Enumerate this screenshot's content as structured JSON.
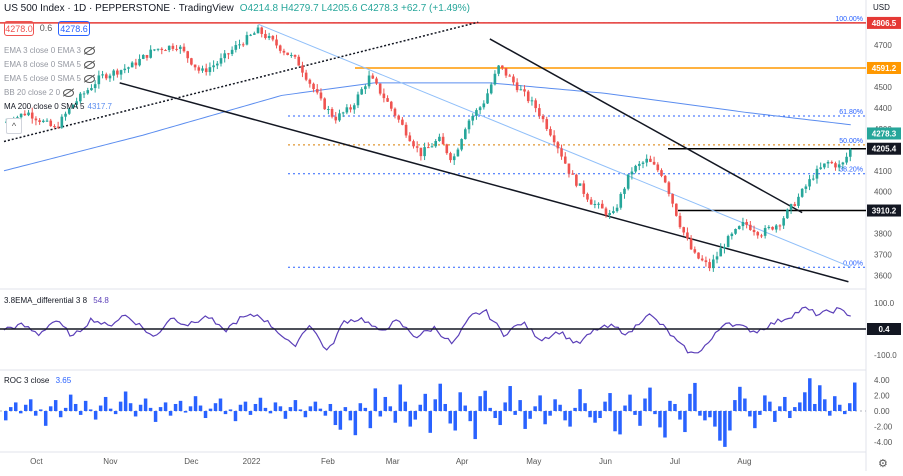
{
  "header": {
    "title": "US 500 Index · 1D · PEPPERSTONE · TradingView",
    "ohlc": "O4214.8 H4279.7 L4205.6 C4278.3 +62.7 (+1.49%)",
    "bid": "4278.0",
    "spread": "0.6",
    "ask": "4278.6",
    "currency": "USD"
  },
  "indicators": [
    {
      "label": "EMA 3 close 0 EMA 3"
    },
    {
      "label": "EMA 8 close 0 SMA 5"
    },
    {
      "label": "EMA 5 close 0 SMA 5"
    },
    {
      "label": "BB 20 close 2 0"
    },
    {
      "label": "MA 200 close 0 SMA 5",
      "value": "4317.7"
    }
  ],
  "colors": {
    "up": "#26a69a",
    "down": "#ef5350",
    "ma200": "#5b8def",
    "red_level": "#e53935",
    "orange_level": "#ff9800",
    "fib": "#2962ff",
    "osc": "#5b3fb8",
    "roc": "#2962ff"
  },
  "chart_data": [
    {
      "type": "candlestick",
      "title": "US 500 Index · 1D · PEPPERSTONE",
      "ylim": [
        3540,
        4830
      ],
      "x_labels": [
        "Oct",
        "Nov",
        "Dec",
        "2022",
        "Feb",
        "Mar",
        "Apr",
        "May",
        "Jun",
        "Jul",
        "Aug"
      ],
      "y_ticks": [
        3600,
        3700,
        3800,
        3900,
        4000,
        4100,
        4200,
        4300,
        4400,
        4500,
        4600,
        4700
      ],
      "close_path_anchors": [
        [
          0,
          4330
        ],
        [
          10,
          4380
        ],
        [
          22,
          4300
        ],
        [
          30,
          4420
        ],
        [
          42,
          4550
        ],
        [
          55,
          4600
        ],
        [
          65,
          4680
        ],
        [
          75,
          4700
        ],
        [
          85,
          4570
        ],
        [
          93,
          4620
        ],
        [
          101,
          4700
        ],
        [
          110,
          4770
        ],
        [
          118,
          4700
        ],
        [
          127,
          4620
        ],
        [
          137,
          4430
        ],
        [
          143,
          4350
        ],
        [
          150,
          4400
        ],
        [
          158,
          4550
        ],
        [
          165,
          4440
        ],
        [
          173,
          4300
        ],
        [
          180,
          4180
        ],
        [
          188,
          4250
        ],
        [
          194,
          4150
        ],
        [
          200,
          4330
        ],
        [
          207,
          4420
        ],
        [
          214,
          4600
        ],
        [
          222,
          4500
        ],
        [
          230,
          4400
        ],
        [
          238,
          4250
        ],
        [
          245,
          4080
        ],
        [
          254,
          3950
        ],
        [
          263,
          3880
        ],
        [
          271,
          4100
        ],
        [
          278,
          4150
        ],
        [
          285,
          4080
        ],
        [
          292,
          3850
        ],
        [
          298,
          3700
        ],
        [
          305,
          3640
        ],
        [
          312,
          3760
        ],
        [
          320,
          3850
        ],
        [
          327,
          3800
        ],
        [
          335,
          3850
        ],
        [
          342,
          3950
        ],
        [
          350,
          4080
        ],
        [
          356,
          4140
        ],
        [
          362,
          4120
        ],
        [
          366,
          4205
        ],
        [
          368,
          4278
        ]
      ],
      "last_close": 4278.3,
      "levels": [
        {
          "label": "4806.5",
          "value": 4806.5,
          "color": "#e53935"
        },
        {
          "label": "4591.2",
          "value": 4591.2,
          "color": "#ff9800"
        },
        {
          "label": "4205.4",
          "value": 4205.4,
          "color": "#000000"
        },
        {
          "label": "3910.2",
          "value": 3910.2,
          "color": "#000000"
        }
      ],
      "fibonacci": [
        {
          "label": "100.00%",
          "value": 4806.5
        },
        {
          "label": "61.80%",
          "value": 4362
        },
        {
          "label": "50.00%",
          "value": 4224
        },
        {
          "label": "38.20%",
          "value": 4086
        },
        {
          "label": "0.00%",
          "value": 3639
        }
      ],
      "trendlines": [
        {
          "name": "support",
          "points": [
            [
              0,
              4240
            ],
            [
              205,
              4810
            ]
          ]
        },
        {
          "name": "upper channel",
          "points": [
            [
              50,
              4520
            ],
            [
              365,
              3570
            ]
          ]
        },
        {
          "name": "descending resistance",
          "points": [
            [
              210,
              4730
            ],
            [
              345,
              3900
            ]
          ]
        }
      ],
      "ma200": [
        [
          0,
          4100
        ],
        [
          60,
          4270
        ],
        [
          120,
          4460
        ],
        [
          160,
          4520
        ],
        [
          210,
          4520
        ],
        [
          260,
          4470
        ],
        [
          320,
          4380
        ],
        [
          366,
          4320
        ]
      ]
    },
    {
      "type": "line",
      "title": "3.8EMA_differential 3 8",
      "value": "54.8",
      "level_label": "0.4",
      "y_ticks": [
        "100.0",
        "-100.0"
      ],
      "ylim": [
        -150,
        150
      ],
      "anchors": [
        [
          0,
          0
        ],
        [
          8,
          15
        ],
        [
          15,
          -20
        ],
        [
          22,
          35
        ],
        [
          30,
          -30
        ],
        [
          38,
          40
        ],
        [
          45,
          10
        ],
        [
          52,
          55
        ],
        [
          58,
          20
        ],
        [
          65,
          -35
        ],
        [
          72,
          45
        ],
        [
          80,
          15
        ],
        [
          88,
          50
        ],
        [
          95,
          -10
        ],
        [
          102,
          40
        ],
        [
          110,
          55
        ],
        [
          118,
          -5
        ],
        [
          125,
          -70
        ],
        [
          132,
          20
        ],
        [
          140,
          -90
        ],
        [
          147,
          30
        ],
        [
          155,
          40
        ],
        [
          162,
          -10
        ],
        [
          170,
          30
        ],
        [
          178,
          -30
        ],
        [
          186,
          5
        ],
        [
          194,
          -60
        ],
        [
          202,
          50
        ],
        [
          208,
          70
        ],
        [
          216,
          -20
        ],
        [
          224,
          25
        ],
        [
          232,
          -40
        ],
        [
          240,
          -10
        ],
        [
          248,
          -60
        ],
        [
          256,
          0
        ],
        [
          263,
          10
        ],
        [
          270,
          -20
        ],
        [
          278,
          60
        ],
        [
          285,
          10
        ],
        [
          292,
          -60
        ],
        [
          298,
          -100
        ],
        [
          305,
          -50
        ],
        [
          312,
          30
        ],
        [
          318,
          10
        ],
        [
          325,
          -10
        ],
        [
          332,
          20
        ],
        [
          340,
          50
        ],
        [
          346,
          80
        ],
        [
          352,
          55
        ],
        [
          360,
          75
        ],
        [
          366,
          55
        ]
      ]
    },
    {
      "type": "bar",
      "title": "ROC 3 close",
      "value": "3.65",
      "y_ticks": [
        "4.00",
        "2.00",
        "0.00",
        "-2.00",
        "-4.00"
      ],
      "ylim": [
        -5,
        5
      ],
      "values": [
        -1.2,
        0.5,
        1.1,
        -0.3,
        0.8,
        1.5,
        -0.6,
        0.2,
        -1.9,
        0.6,
        1.4,
        -0.8,
        0.4,
        2.1,
        0.9,
        -0.5,
        1.3,
        0.2,
        -1.1,
        0.7,
        1.8,
        0.3,
        -0.4,
        1.2,
        2.5,
        1.0,
        -0.7,
        0.8,
        1.6,
        0.4,
        -1.4,
        0.5,
        1.1,
        -0.6,
        0.9,
        1.3,
        -0.2,
        0.6,
        1.9,
        0.7,
        -0.9,
        0.3,
        1.0,
        1.6,
        -0.4,
        0.2,
        -1.3,
        0.8,
        1.2,
        -0.5,
        0.9,
        1.7,
        0.4,
        -0.3,
        1.1,
        0.6,
        -1.0,
        0.5,
        1.4,
        0.2,
        -0.8,
        0.6,
        1.2,
        0.3,
        -0.6,
        0.9,
        -1.8,
        -2.4,
        0.5,
        -1.2,
        -3.1,
        1.0,
        0.4,
        -2.2,
        2.9,
        -0.7,
        1.8,
        0.6,
        -1.5,
        3.4,
        1.2,
        -2.0,
        -1.1,
        0.8,
        2.2,
        -2.8,
        1.5,
        3.5,
        0.9,
        -1.6,
        -2.5,
        2.4,
        0.7,
        -1.3,
        -3.6,
        1.9,
        2.6,
        0.4,
        -0.9,
        -1.8,
        1.1,
        3.2,
        -0.5,
        1.4,
        -2.3,
        -1.0,
        0.6,
        2.0,
        -1.7,
        -0.6,
        1.5,
        0.8,
        -1.2,
        -2.0,
        0.4,
        2.8,
        1.0,
        -0.8,
        -1.5,
        -0.9,
        1.2,
        2.3,
        -2.6,
        -3.0,
        0.7,
        2.1,
        -0.5,
        -1.9,
        1.6,
        3.0,
        -0.4,
        -2.1,
        -3.4,
        1.3,
        0.9,
        -1.1,
        -2.7,
        2.2,
        3.6,
        -0.6,
        -1.2,
        -0.8,
        -2.0,
        -3.8,
        -4.6,
        -2.5,
        1.4,
        3.1,
        1.6,
        -0.7,
        -2.2,
        -0.5,
        2.0,
        1.2,
        -1.4,
        0.6,
        1.8,
        -0.9,
        0.5,
        1.1,
        2.4,
        4.2,
        0.9,
        3.3,
        1.5,
        -0.6,
        1.9,
        0.8,
        -0.4,
        1.0,
        3.65
      ]
    }
  ]
}
